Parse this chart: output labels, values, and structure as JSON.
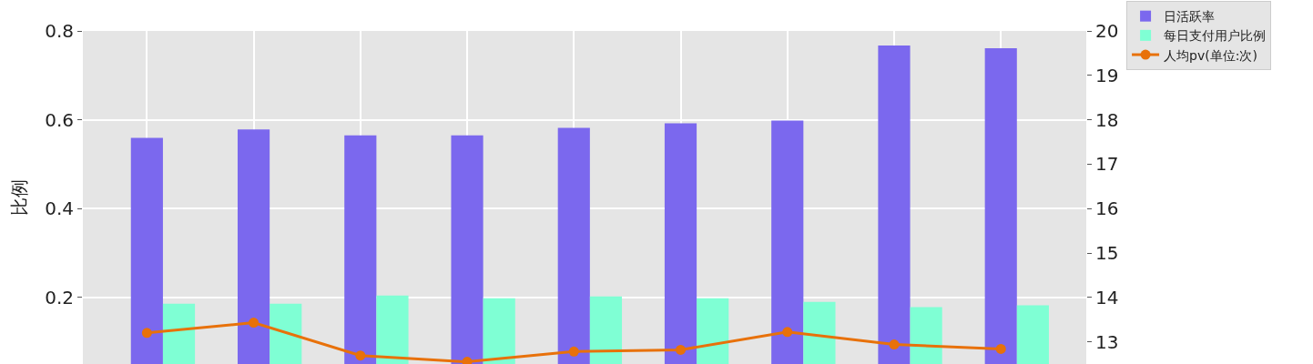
{
  "chart_data": {
    "type": "bar",
    "ylabel": "比例",
    "categories": [
      null,
      null,
      null,
      null,
      null,
      null,
      null,
      null,
      null
    ],
    "series": [
      {
        "name": "日活跃率",
        "color": "#7b68ee",
        "values": [
          0.559,
          0.578,
          0.565,
          0.565,
          0.582,
          0.592,
          0.598,
          0.767,
          0.761
        ]
      },
      {
        "name": "每日支付用户比例",
        "color": "#7fffd4",
        "values": [
          0.186,
          0.186,
          0.204,
          0.198,
          0.202,
          0.198,
          0.19,
          0.178,
          0.182
        ]
      },
      {
        "name": "人均pv(单位:次)",
        "type": "line",
        "axis": "y2",
        "color": "#e8710a",
        "values": [
          13.2,
          13.43,
          12.69,
          12.55,
          12.78,
          12.82,
          13.22,
          12.94,
          12.84
        ]
      }
    ],
    "ylim": [
      0.05,
      0.8
    ],
    "yticks": [
      0.2,
      0.4,
      0.6,
      0.8
    ],
    "y2lim": [
      12.5,
      20
    ],
    "y2ticks": [
      13,
      14,
      15,
      16,
      17,
      18,
      19,
      20
    ],
    "grid": true,
    "legend": "top right",
    "marker": "circle",
    "line_style": "solid"
  }
}
